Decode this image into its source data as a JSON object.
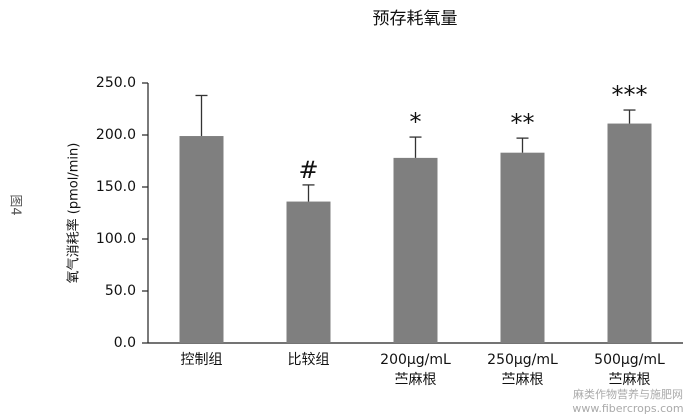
{
  "chart_data": {
    "type": "bar",
    "title": "预存耗氧量",
    "y_label": "氧气消耗率 (pmol/min)",
    "categories": [
      [
        "控制组"
      ],
      [
        "比较组"
      ],
      [
        "200μg/mL",
        "苎麻根"
      ],
      [
        "250μg/mL",
        "苎麻根"
      ],
      [
        "500μg/mL",
        "苎麻根"
      ]
    ],
    "values": [
      199,
      136,
      178,
      183,
      211
    ],
    "errors": [
      39,
      16,
      20,
      14,
      13
    ],
    "annotations": [
      null,
      "#",
      "*",
      "**",
      "***"
    ],
    "color": "#7f7f7f",
    "ylim": [
      0,
      250
    ],
    "yticks": [
      {
        "value": 0,
        "label": "0.0"
      },
      {
        "value": 50,
        "label": "50.0"
      },
      {
        "value": 100,
        "label": "100.0"
      },
      {
        "value": 150,
        "label": "150.0"
      },
      {
        "value": 200,
        "label": "200.0"
      },
      {
        "value": 250,
        "label": "250.0"
      }
    ],
    "grid": false
  },
  "side_label": "图4",
  "watermark": [
    "麻类作物营养与施肥网",
    "www.fibercrops.com"
  ]
}
